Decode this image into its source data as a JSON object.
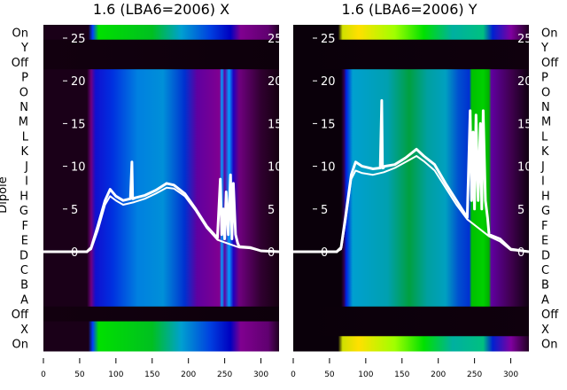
{
  "chart_data": {
    "type": "heatmap",
    "ylabel": "Dipole",
    "row_labels": [
      "On",
      "Y",
      "Off",
      "P",
      "O",
      "N",
      "M",
      "L",
      "K",
      "J",
      "I",
      "H",
      "G",
      "F",
      "E",
      "D",
      "C",
      "B",
      "A",
      "Off",
      "X",
      "On"
    ],
    "xlim": [
      0,
      325
    ],
    "xticks": [
      0,
      50,
      100,
      150,
      200,
      250,
      300
    ],
    "overlay_ylim": [
      0,
      26
    ],
    "overlay_yticks": [
      0,
      5,
      10,
      15,
      20,
      25
    ],
    "panels": [
      {
        "title": "1.6 (LBA6=2006) X",
        "row_states": [
          "on",
          "off",
          "off",
          "d",
          "d",
          "d",
          "d",
          "d",
          "d",
          "d",
          "d",
          "d",
          "d",
          "d",
          "d",
          "d",
          "d",
          "d",
          "d",
          "off",
          "on",
          "on"
        ],
        "colors": {
          "d": [
            [
              0,
              "#1a0018"
            ],
            [
              60,
              "#1a0018"
            ],
            [
              66,
              "#700080"
            ],
            [
              72,
              "#1010d0"
            ],
            [
              95,
              "#0030e0"
            ],
            [
              130,
              "#0080e0"
            ],
            [
              165,
              "#0090d8"
            ],
            [
              195,
              "#0030d0"
            ],
            [
              212,
              "#6000a0"
            ],
            [
              243,
              "#800090"
            ],
            [
              246,
              "#00a0ff"
            ],
            [
              250,
              "#6000a0"
            ],
            [
              256,
              "#00a0ff"
            ],
            [
              262,
              "#2000c0"
            ],
            [
              270,
              "#700080"
            ],
            [
              300,
              "#300030"
            ],
            [
              325,
              "#150010"
            ]
          ],
          "on": [
            [
              0,
              "#1a0018"
            ],
            [
              62,
              "#1a0018"
            ],
            [
              68,
              "#0040ff"
            ],
            [
              76,
              "#00e000"
            ],
            [
              150,
              "#00c020"
            ],
            [
              190,
              "#00a0d0"
            ],
            [
              230,
              "#0040e0"
            ],
            [
              258,
              "#0000c0"
            ],
            [
              272,
              "#800090"
            ],
            [
              310,
              "#600070"
            ],
            [
              325,
              "#200020"
            ]
          ],
          "off": [
            [
              0,
              "#12000f"
            ],
            [
              325,
              "#0d000b"
            ]
          ]
        },
        "lines": [
          {
            "x": [
              0,
              60,
              66,
              75,
              85,
              92,
              100,
              110,
              120,
              122,
              123,
              124,
              126,
              140,
              155,
              170,
              180,
              195,
              210,
              225,
              240,
              244,
              246,
              248,
              250,
              252,
              255,
              258,
              260,
              262,
              265,
              268,
              270,
              285,
              300,
              325
            ],
            "y": [
              0,
              0,
              0.5,
              3,
              6,
              7.3,
              6.5,
              6,
              6.2,
              10.5,
              6.2,
              6.2,
              6.3,
              6.6,
              7.2,
              8,
              7.8,
              6.8,
              5,
              3,
              1.6,
              8.5,
              2,
              5,
              1.5,
              7,
              2,
              9,
              1.5,
              8,
              2,
              1,
              0.6,
              0.5,
              0.1,
              0
            ]
          },
          {
            "x": [
              0,
              60,
              66,
              75,
              85,
              92,
              100,
              110,
              125,
              140,
              155,
              170,
              180,
              195,
              210,
              225,
              240,
              270,
              285,
              300,
              325
            ],
            "y": [
              0,
              0,
              0.3,
              2.5,
              5.5,
              6.5,
              6,
              5.5,
              5.8,
              6.2,
              6.8,
              7.5,
              7.4,
              6.5,
              4.8,
              2.8,
              1.4,
              0.5,
              0.4,
              0.1,
              0
            ]
          }
        ]
      },
      {
        "title": "1.6 (LBA6=2006) Y",
        "row_states": [
          "on",
          "off",
          "off",
          "d",
          "d",
          "d",
          "d",
          "d",
          "d",
          "d",
          "d",
          "d",
          "d",
          "d",
          "d",
          "d",
          "d",
          "d",
          "d",
          "off",
          "off",
          "on"
        ],
        "colors": {
          "d": [
            [
              0,
              "#0a000a"
            ],
            [
              66,
              "#0a000a"
            ],
            [
              70,
              "#300050"
            ],
            [
              73,
              "#0020e0"
            ],
            [
              82,
              "#00a0d0"
            ],
            [
              130,
              "#00a0b0"
            ],
            [
              160,
              "#00a040"
            ],
            [
              185,
              "#00a0a0"
            ],
            [
              210,
              "#00a0c0"
            ],
            [
              228,
              "#0050d0"
            ],
            [
              243,
              "#0030d0"
            ],
            [
              246,
              "#00c000"
            ],
            [
              262,
              "#00d000"
            ],
            [
              270,
              "#00b000"
            ],
            [
              273,
              "#6000a0"
            ],
            [
              300,
              "#400050"
            ],
            [
              325,
              "#100010"
            ]
          ],
          "on": [
            [
              0,
              "#0a000a"
            ],
            [
              62,
              "#0a000a"
            ],
            [
              68,
              "#d0e000"
            ],
            [
              90,
              "#ffe000"
            ],
            [
              140,
              "#a0ff00"
            ],
            [
              180,
              "#00e000"
            ],
            [
              220,
              "#00b0a0"
            ],
            [
              262,
              "#00c080"
            ],
            [
              275,
              "#0020d0"
            ],
            [
              300,
              "#8000a0"
            ],
            [
              325,
              "#200020"
            ]
          ],
          "off": [
            [
              0,
              "#0a000a"
            ],
            [
              325,
              "#0f000d"
            ]
          ]
        },
        "lines": [
          {
            "x": [
              0,
              60,
              66,
              72,
              80,
              86,
              95,
              110,
              120,
              122,
              123,
              124,
              126,
              140,
              155,
              170,
              180,
              195,
              210,
              225,
              240,
              244,
              246,
              248,
              250,
              252,
              255,
              258,
              260,
              262,
              265,
              268,
              270,
              285,
              300,
              325
            ],
            "y": [
              0,
              0,
              0.5,
              4,
              9,
              10.5,
              10,
              9.7,
              9.8,
              17.7,
              9.8,
              9.8,
              10,
              10.2,
              11,
              12,
              11.2,
              10.2,
              8,
              6,
              4,
              16.5,
              6,
              14,
              5,
              16,
              6,
              15,
              5,
              16.5,
              6,
              4,
              2,
              1.5,
              0.3,
              0
            ]
          },
          {
            "x": [
              0,
              60,
              66,
              72,
              80,
              86,
              95,
              110,
              125,
              140,
              155,
              170,
              180,
              195,
              210,
              225,
              240,
              270,
              285,
              300,
              325
            ],
            "y": [
              0,
              0,
              0.3,
              3.5,
              8.5,
              9.5,
              9.2,
              9,
              9.3,
              9.8,
              10.5,
              11.2,
              10.6,
              9.5,
              7.5,
              5.5,
              3.8,
              1.8,
              1.2,
              0.2,
              0
            ]
          }
        ]
      }
    ]
  }
}
